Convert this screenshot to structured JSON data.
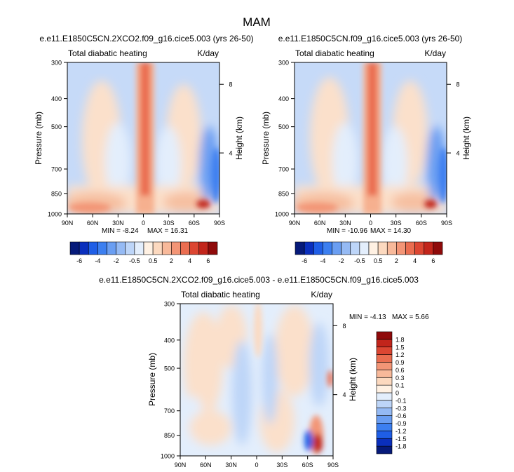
{
  "figure": {
    "title": "MAM"
  },
  "palette": {
    "neg": [
      "#061a7a",
      "#0a2fbd",
      "#1f5ee6",
      "#3c7ff0",
      "#6a9ef2",
      "#95baf4",
      "#bdd5f8",
      "#e3eefc"
    ],
    "pos": [
      "#fff1e3",
      "#fcd9bf",
      "#f8b99a",
      "#f39576",
      "#ea6d50",
      "#dc4632",
      "#c2251b",
      "#8f0a0a"
    ]
  },
  "chart_data": [
    {
      "id": "panel_2xco2",
      "type": "heatmap",
      "title": "e.e11.E1850C5CN.2XCO2.f09_g16.cice5.003 (yrs 26-50)",
      "left_label": "Total diabatic heating",
      "right_label": "K/day",
      "xlabel": "",
      "ylabel": "Pressure (mb)",
      "right_axis_label": "Height (km)",
      "x_ticks": [
        "90N",
        "60N",
        "30N",
        "0",
        "30S",
        "60S",
        "90S"
      ],
      "x_values": [
        90,
        60,
        30,
        0,
        -30,
        -60,
        -90
      ],
      "y_ticks": [
        "300",
        "400",
        "500",
        "700",
        "850",
        "1000"
      ],
      "y_values": [
        300,
        400,
        500,
        700,
        850,
        1000
      ],
      "height_ticks": [
        {
          "label": "8",
          "pressure": 357
        },
        {
          "label": "4",
          "pressure": 616
        }
      ],
      "ylim": [
        300,
        1000
      ],
      "xlim": [
        90,
        -90
      ],
      "y_scale": "log-pressure",
      "min_label": "MIN =  -8.24",
      "max_label": "MAX =  16.31",
      "levels": [
        -6,
        -5,
        -4,
        -3,
        -2,
        -1,
        -0.5,
        0,
        0.5,
        1,
        2,
        3,
        4,
        5,
        6
      ],
      "levels_labeled": [
        "-6",
        "-4",
        "-2",
        "-0.5",
        "0.5",
        "2",
        "4",
        "6"
      ],
      "colorbar": "horizontal-below"
    },
    {
      "id": "panel_control",
      "type": "heatmap",
      "title": "e.e11.E1850C5CN.f09_g16.cice5.003 (yrs 26-50)",
      "left_label": "Total diabatic heating",
      "right_label": "K/day",
      "xlabel": "",
      "ylabel": "Pressure (mb)",
      "right_axis_label": "Height (km)",
      "x_ticks": [
        "90N",
        "60N",
        "30N",
        "0",
        "30S",
        "60S",
        "90S"
      ],
      "x_values": [
        90,
        60,
        30,
        0,
        -30,
        -60,
        -90
      ],
      "y_ticks": [
        "300",
        "400",
        "500",
        "700",
        "850",
        "1000"
      ],
      "y_values": [
        300,
        400,
        500,
        700,
        850,
        1000
      ],
      "height_ticks": [
        {
          "label": "8",
          "pressure": 357
        },
        {
          "label": "4",
          "pressure": 616
        }
      ],
      "ylim": [
        300,
        1000
      ],
      "xlim": [
        90,
        -90
      ],
      "y_scale": "log-pressure",
      "min_label": "MIN = -10.96",
      "max_label": "MAX =  14.30",
      "levels": [
        -6,
        -5,
        -4,
        -3,
        -2,
        -1,
        -0.5,
        0,
        0.5,
        1,
        2,
        3,
        4,
        5,
        6
      ],
      "levels_labeled": [
        "-6",
        "-4",
        "-2",
        "-0.5",
        "0.5",
        "2",
        "4",
        "6"
      ],
      "colorbar": "horizontal-below"
    },
    {
      "id": "panel_diff",
      "type": "heatmap",
      "title": "e.e11.E1850C5CN.2XCO2.f09_g16.cice5.003 - e.e11.E1850C5CN.f09_g16.cice5.003",
      "left_label": "Total diabatic heating",
      "right_label": "K/day",
      "xlabel": "",
      "ylabel": "Pressure (mb)",
      "right_axis_label": "Height (km)",
      "x_ticks": [
        "90N",
        "60N",
        "30N",
        "0",
        "30S",
        "60S",
        "90S"
      ],
      "x_values": [
        90,
        60,
        30,
        0,
        -30,
        -60,
        -90
      ],
      "y_ticks": [
        "300",
        "400",
        "500",
        "700",
        "850",
        "1000"
      ],
      "y_values": [
        300,
        400,
        500,
        700,
        850,
        1000
      ],
      "height_ticks": [
        {
          "label": "8",
          "pressure": 357
        },
        {
          "label": "4",
          "pressure": 616
        }
      ],
      "ylim": [
        300,
        1000
      ],
      "xlim": [
        90,
        -90
      ],
      "y_scale": "log-pressure",
      "min_label": "MIN =  -4.13",
      "max_label": "MAX =   5.66",
      "levels": [
        -1.8,
        -1.5,
        -1.2,
        -0.9,
        -0.6,
        -0.3,
        -0.1,
        0,
        0.1,
        0.3,
        0.6,
        0.9,
        1.2,
        1.5,
        1.8
      ],
      "levels_labeled": [
        "-1.8",
        "-1.5",
        "-1.2",
        "-0.9",
        "-0.6",
        "-0.3",
        "-0.1",
        "0",
        "0.1",
        "0.3",
        "0.6",
        "0.9",
        "1.2",
        "1.5",
        "1.8"
      ],
      "colorbar": "vertical-right"
    }
  ]
}
